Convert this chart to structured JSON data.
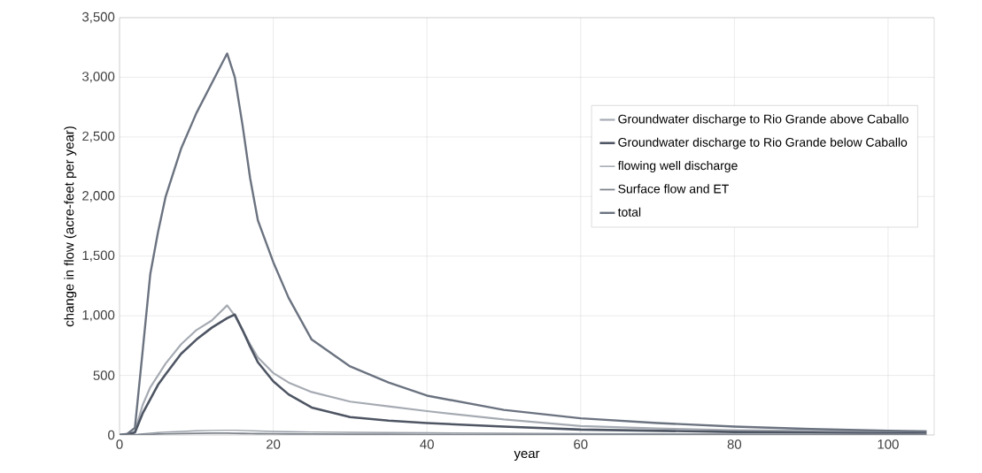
{
  "chart_data": {
    "type": "line",
    "xlabel": "year",
    "ylabel": "change in flow (acre-feet per year)",
    "x": [
      0,
      1,
      2,
      3,
      4,
      5,
      6,
      8,
      10,
      12,
      14,
      15,
      16,
      17,
      18,
      20,
      22,
      25,
      30,
      35,
      40,
      50,
      60,
      70,
      80,
      90,
      100,
      105
    ],
    "series": [
      {
        "name": "Groundwater discharge to Rio Grande above Caballo",
        "color": "#a6abb3",
        "values": [
          0,
          5,
          30,
          250,
          400,
          500,
          600,
          760,
          880,
          960,
          1087,
          1000,
          880,
          760,
          650,
          520,
          440,
          360,
          280,
          240,
          200,
          130,
          75,
          55,
          40,
          35,
          30,
          30
        ]
      },
      {
        "name": "Groundwater discharge to Rio Grande below Caballo",
        "color": "#4e5563",
        "values": [
          0,
          5,
          20,
          180,
          300,
          420,
          510,
          680,
          800,
          900,
          980,
          1010,
          880,
          740,
          610,
          450,
          340,
          230,
          150,
          120,
          100,
          70,
          45,
          35,
          25,
          20,
          15,
          15
        ]
      },
      {
        "name": "flowing well discharge",
        "color": "#9aa0a8",
        "values": [
          0,
          0,
          2,
          10,
          15,
          20,
          25,
          30,
          35,
          38,
          40,
          40,
          38,
          36,
          34,
          30,
          28,
          25,
          22,
          20,
          18,
          15,
          12,
          10,
          8,
          6,
          5,
          5
        ]
      },
      {
        "name": "Surface flow and ET",
        "color": "#7f858e",
        "values": [
          0,
          0,
          0,
          5,
          5,
          8,
          10,
          12,
          14,
          15,
          15,
          14,
          13,
          12,
          11,
          10,
          9,
          8,
          7,
          6,
          5,
          5,
          4,
          4,
          3,
          3,
          3,
          3
        ]
      },
      {
        "name": "total",
        "color": "#6b7380",
        "values": [
          0,
          10,
          60,
          700,
          1350,
          1700,
          2000,
          2400,
          2700,
          2950,
          3200,
          3000,
          2600,
          2150,
          1800,
          1450,
          1150,
          800,
          575,
          440,
          330,
          210,
          140,
          100,
          70,
          50,
          35,
          30
        ]
      }
    ],
    "xlim": [
      0,
      106
    ],
    "xticks": [
      0,
      20,
      40,
      60,
      80,
      100
    ],
    "ylim": [
      0,
      3500
    ],
    "yticks": [
      0,
      500,
      {
        "value": 1000,
        "label": "1,000"
      },
      {
        "value": 1500,
        "label": "1,500"
      },
      {
        "value": 2000,
        "label": "2,000"
      },
      {
        "value": 2500,
        "label": "2,500"
      },
      {
        "value": 3000,
        "label": "3,000"
      },
      {
        "value": 3500,
        "label": "3,500"
      }
    ],
    "grid": true,
    "legend": "top right",
    "marker": "none",
    "line_style": "solid"
  }
}
